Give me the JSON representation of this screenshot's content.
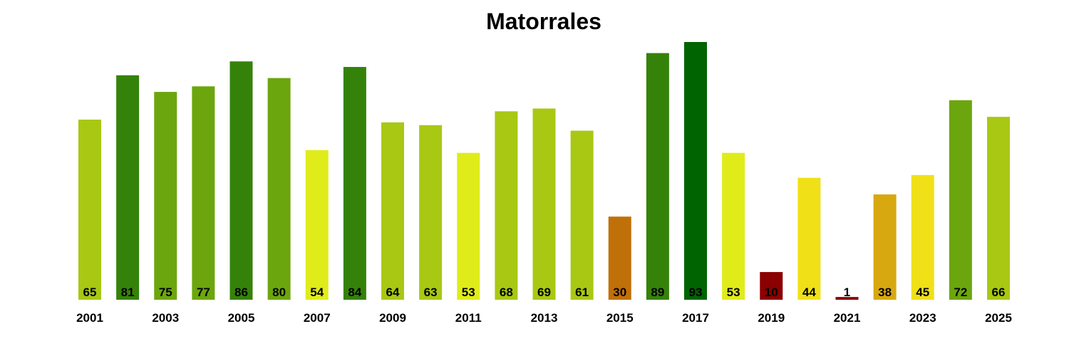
{
  "chart_data": {
    "type": "bar",
    "title": "Matorrales",
    "xlabel": "",
    "ylabel": "",
    "ylim": [
      0,
      93
    ],
    "grid": false,
    "categories": [
      "2001",
      "2002",
      "2003",
      "2004",
      "2005",
      "2006",
      "2007",
      "2008",
      "2009",
      "2010",
      "2011",
      "2012",
      "2013",
      "2014",
      "2015",
      "2016",
      "2017",
      "2018",
      "2019",
      "2020",
      "2021",
      "2022",
      "2023",
      "2024",
      "2025"
    ],
    "tick_labels": [
      "2001",
      "2003",
      "2005",
      "2007",
      "2009",
      "2011",
      "2013",
      "2015",
      "2017",
      "2019",
      "2021",
      "2023",
      "2025"
    ],
    "values": [
      65,
      81,
      75,
      77,
      86,
      80,
      54,
      84,
      64,
      63,
      53,
      68,
      69,
      61,
      30,
      89,
      93,
      53,
      10,
      44,
      1,
      38,
      45,
      72,
      66
    ],
    "colors": [
      "#a8c814",
      "#35820a",
      "#6ca60e",
      "#6ca60e",
      "#35820a",
      "#6ca60e",
      "#e0ec1a",
      "#35820a",
      "#a8c814",
      "#a8c814",
      "#e0ec1a",
      "#a8c814",
      "#a8c814",
      "#a8c814",
      "#c07008",
      "#35820a",
      "#006400",
      "#e0ec1a",
      "#8b0000",
      "#f0e018",
      "#8b0000",
      "#d8a810",
      "#f0e018",
      "#6ca60e",
      "#a8c814"
    ]
  }
}
